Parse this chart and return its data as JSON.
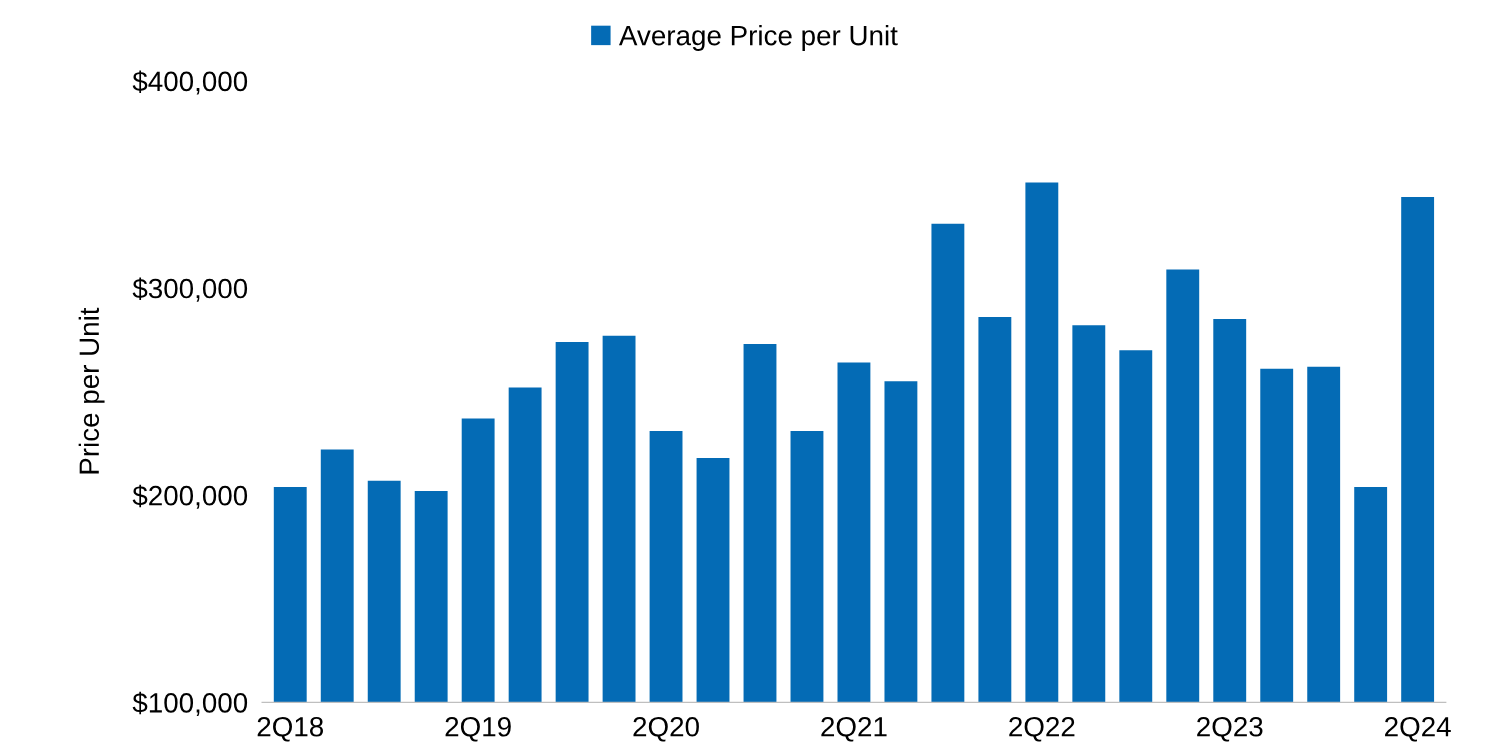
{
  "chart_data": {
    "type": "bar",
    "ylabel": "Price per Unit",
    "categories": [
      "2Q18",
      null,
      null,
      null,
      "2Q19",
      null,
      null,
      null,
      "2Q20",
      null,
      null,
      null,
      "2Q21",
      null,
      null,
      null,
      "2Q22",
      null,
      null,
      null,
      "2Q23",
      null,
      null,
      null,
      "2Q24"
    ],
    "series": [
      {
        "name": "Average Price per Unit",
        "color": "#046bb5",
        "values": [
          204000,
          222000,
          207000,
          202000,
          237000,
          252000,
          274000,
          277000,
          231000,
          218000,
          273000,
          231000,
          264000,
          255000,
          331000,
          286000,
          351000,
          282000,
          270000,
          309000,
          285000,
          261000,
          262000,
          204000,
          344000
        ]
      }
    ],
    "ylim": [
      100000,
      400000
    ],
    "yticks": [
      {
        "value": 100000,
        "label": "$100,000"
      },
      {
        "value": 200000,
        "label": "$200,000"
      },
      {
        "value": 300000,
        "label": "$300,000"
      },
      {
        "value": 400000,
        "label": "$400,000"
      }
    ],
    "grid": false,
    "legend": "top"
  }
}
